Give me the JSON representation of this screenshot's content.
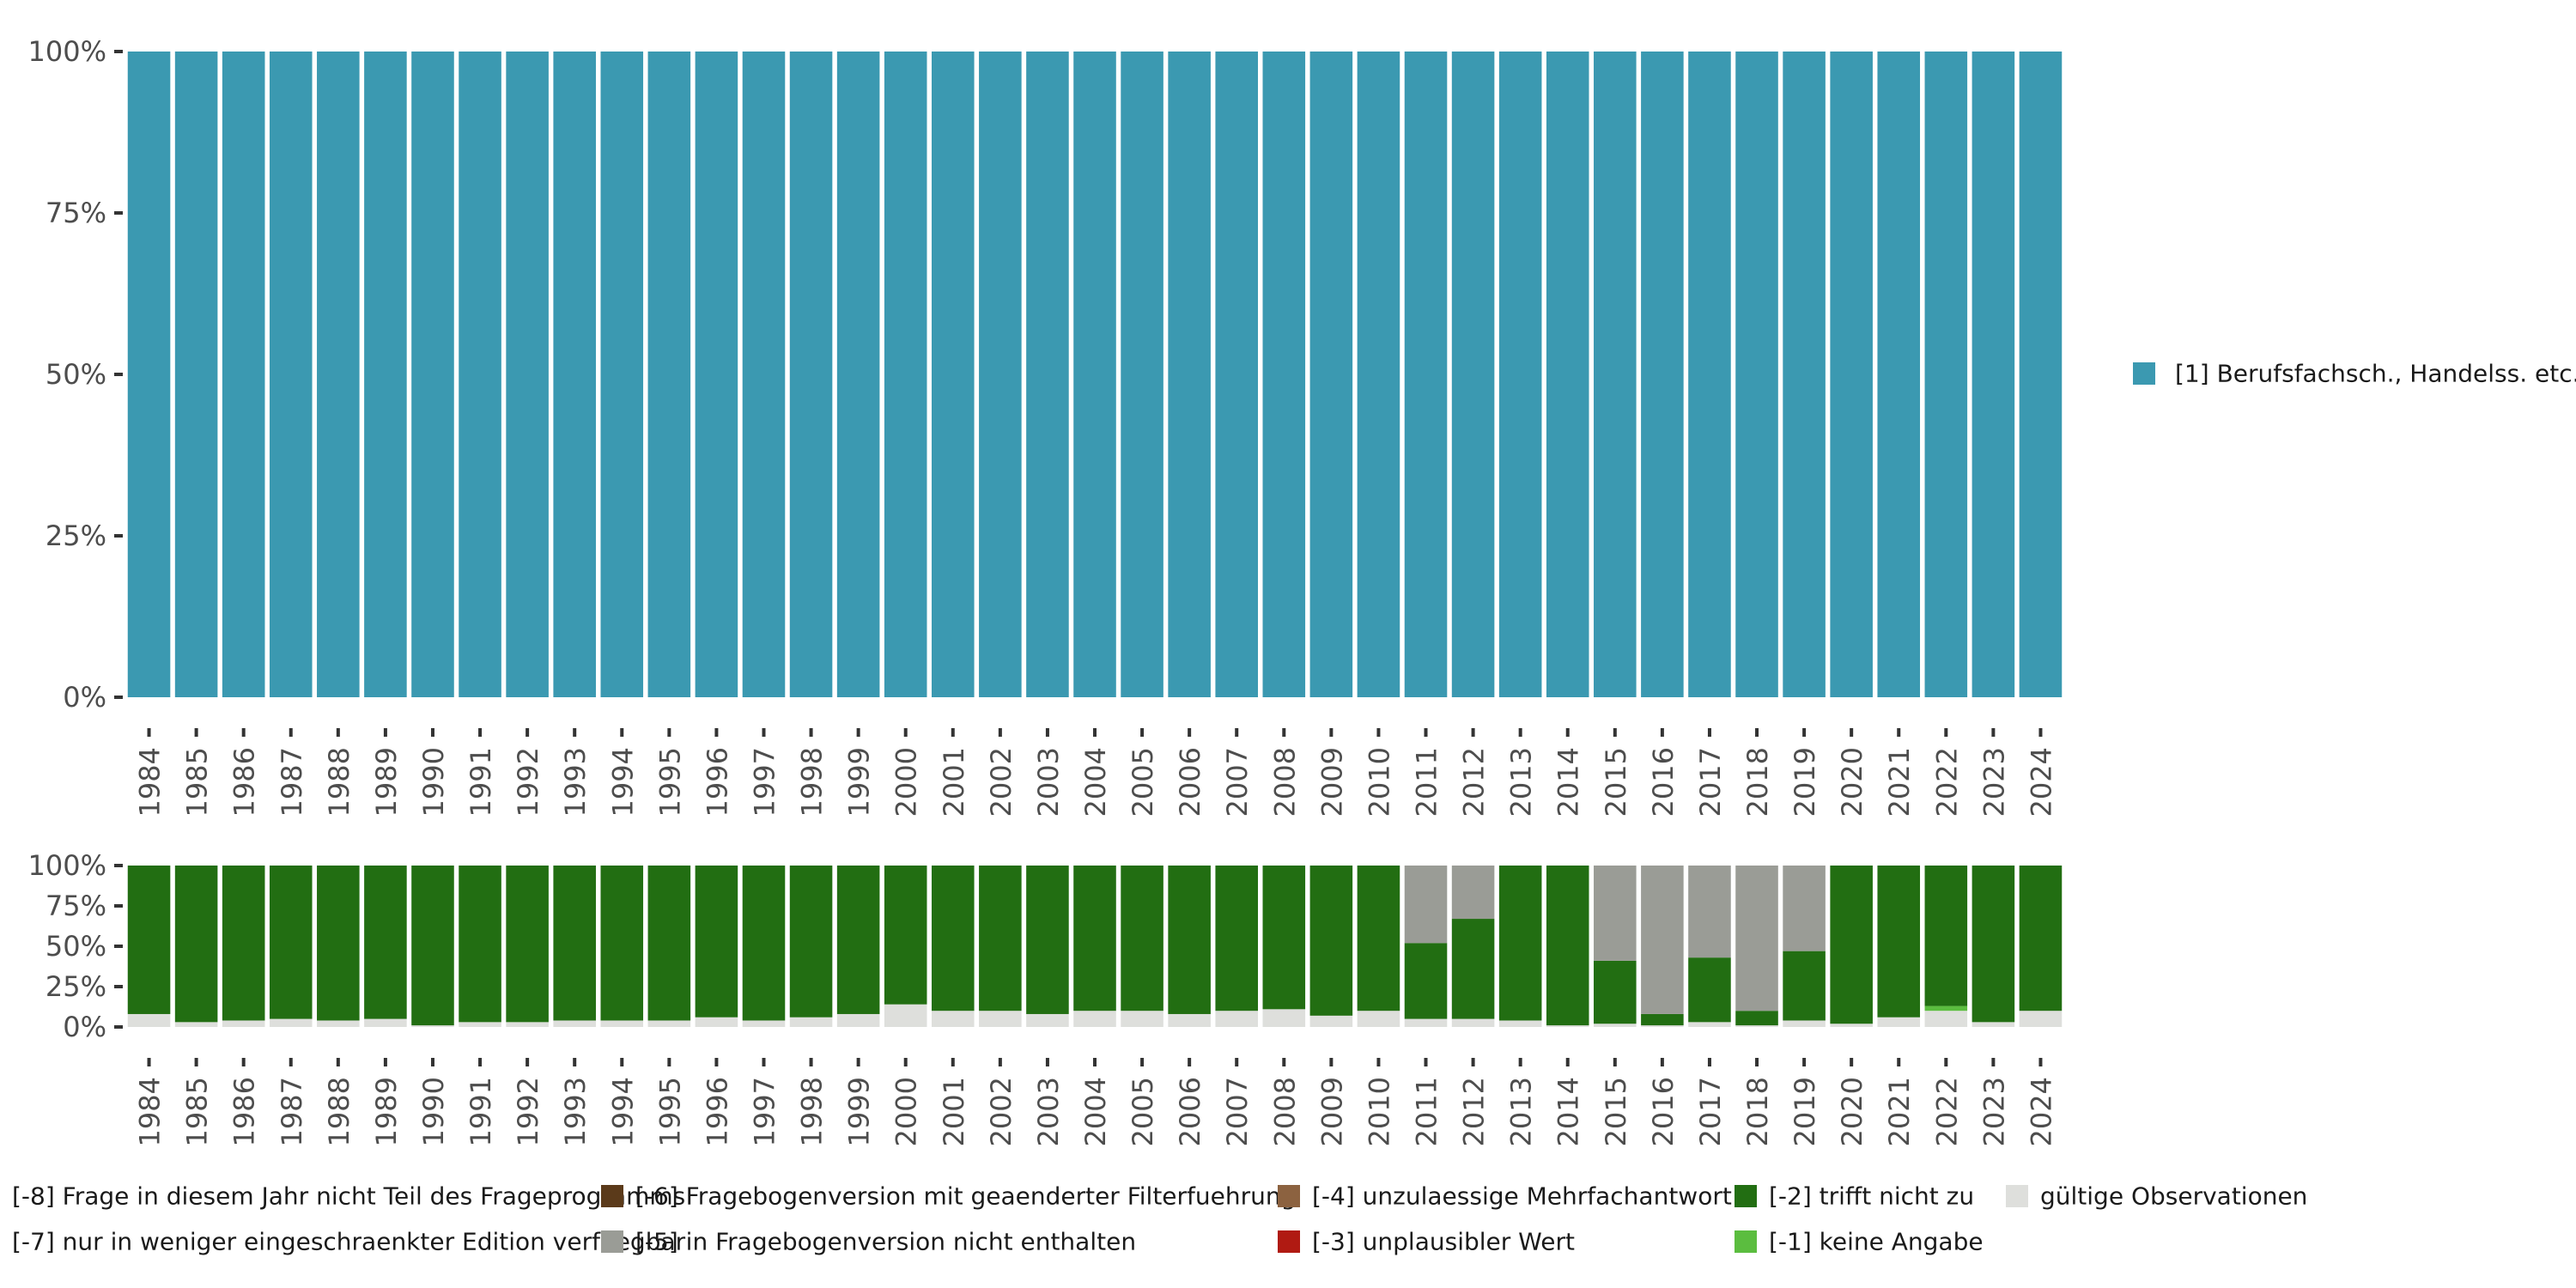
{
  "chart_data": [
    {
      "type": "bar",
      "stacked": true,
      "normalized": true,
      "ylim": [
        0,
        100
      ],
      "yticks": [
        "0%",
        "25%",
        "50%",
        "75%",
        "100%"
      ],
      "grid": false,
      "legend_position": "right",
      "categories": [
        "1984",
        "1985",
        "1986",
        "1987",
        "1988",
        "1989",
        "1990",
        "1991",
        "1992",
        "1993",
        "1994",
        "1995",
        "1996",
        "1997",
        "1998",
        "1999",
        "2000",
        "2001",
        "2002",
        "2003",
        "2004",
        "2005",
        "2006",
        "2007",
        "2008",
        "2009",
        "2010",
        "2011",
        "2012",
        "2013",
        "2014",
        "2015",
        "2016",
        "2017",
        "2018",
        "2019",
        "2020",
        "2021",
        "2022",
        "2023",
        "2024"
      ],
      "series": [
        {
          "name": "[1] Berufsfachsch., Handelss. etc.",
          "color": "#3b99b1",
          "values": [
            100,
            100,
            100,
            100,
            100,
            100,
            100,
            100,
            100,
            100,
            100,
            100,
            100,
            100,
            100,
            100,
            100,
            100,
            100,
            100,
            100,
            100,
            100,
            100,
            100,
            100,
            100,
            100,
            100,
            100,
            100,
            100,
            100,
            100,
            100,
            100,
            100,
            100,
            100,
            100,
            100
          ]
        }
      ]
    },
    {
      "type": "bar",
      "stacked": true,
      "normalized": true,
      "ylim": [
        0,
        100
      ],
      "yticks": [
        "0%",
        "25%",
        "50%",
        "75%",
        "100%"
      ],
      "grid": false,
      "legend_position": "bottom",
      "categories": [
        "1984",
        "1985",
        "1986",
        "1987",
        "1988",
        "1989",
        "1990",
        "1991",
        "1992",
        "1993",
        "1994",
        "1995",
        "1996",
        "1997",
        "1998",
        "1999",
        "2000",
        "2001",
        "2002",
        "2003",
        "2004",
        "2005",
        "2006",
        "2007",
        "2008",
        "2009",
        "2010",
        "2011",
        "2012",
        "2013",
        "2014",
        "2015",
        "2016",
        "2017",
        "2018",
        "2019",
        "2020",
        "2021",
        "2022",
        "2023",
        "2024"
      ],
      "series": [
        {
          "name": "gültige Observationen",
          "color": "#dedfdc",
          "values": [
            8,
            3,
            4,
            5,
            4,
            5,
            1,
            3,
            3,
            4,
            4,
            4,
            6,
            4,
            6,
            8,
            14,
            10,
            10,
            8,
            10,
            10,
            8,
            10,
            11,
            7,
            10,
            5,
            5,
            4,
            1,
            2,
            1,
            3,
            1,
            4,
            2,
            6,
            10,
            3,
            10
          ]
        },
        {
          "name": "[-1] keine Angabe",
          "color": "#5bbd3f",
          "values": [
            0,
            0,
            0,
            0,
            0,
            0,
            0,
            0,
            0,
            0,
            0,
            0,
            0,
            0,
            0,
            0,
            0,
            0,
            0,
            0,
            0,
            0,
            0,
            0,
            0,
            0,
            0,
            0,
            0,
            0,
            0,
            0,
            0,
            0,
            0,
            0,
            0,
            0,
            3,
            0,
            0
          ]
        },
        {
          "name": "[-2] trifft nicht zu",
          "color": "#226e12",
          "values": [
            92,
            97,
            96,
            95,
            96,
            95,
            99,
            97,
            97,
            96,
            96,
            96,
            94,
            96,
            94,
            92,
            86,
            90,
            90,
            92,
            90,
            90,
            92,
            90,
            89,
            93,
            90,
            47,
            62,
            96,
            99,
            39,
            7,
            40,
            9,
            43,
            98,
            94,
            87,
            97,
            90
          ]
        },
        {
          "name": "[-3] unplausibler Wert",
          "color": "#b01a12",
          "values": [
            0,
            0,
            0,
            0,
            0,
            0,
            0,
            0,
            0,
            0,
            0,
            0,
            0,
            0,
            0,
            0,
            0,
            0,
            0,
            0,
            0,
            0,
            0,
            0,
            0,
            0,
            0,
            0,
            0,
            0,
            0,
            0,
            0,
            0,
            0,
            0,
            0,
            0,
            0,
            0,
            0
          ]
        },
        {
          "name": "[-4] unzulaessige Mehrfachantwort",
          "color": "#8c6240",
          "values": [
            0,
            0,
            0,
            0,
            0,
            0,
            0,
            0,
            0,
            0,
            0,
            0,
            0,
            0,
            0,
            0,
            0,
            0,
            0,
            0,
            0,
            0,
            0,
            0,
            0,
            0,
            0,
            0,
            0,
            0,
            0,
            0,
            0,
            0,
            0,
            0,
            0,
            0,
            0,
            0,
            0
          ]
        },
        {
          "name": "[-5] in Fragebogenversion nicht enthalten",
          "color": "#9a9c96",
          "values": [
            0,
            0,
            0,
            0,
            0,
            0,
            0,
            0,
            0,
            0,
            0,
            0,
            0,
            0,
            0,
            0,
            0,
            0,
            0,
            0,
            0,
            0,
            0,
            0,
            0,
            0,
            0,
            48,
            33,
            0,
            0,
            59,
            92,
            57,
            90,
            53,
            0,
            0,
            0,
            0,
            0
          ]
        },
        {
          "name": "[-6] Fragebogenversion mit geaenderter Filterfuehrung",
          "color": "#5b3a1a",
          "values": [
            0,
            0,
            0,
            0,
            0,
            0,
            0,
            0,
            0,
            0,
            0,
            0,
            0,
            0,
            0,
            0,
            0,
            0,
            0,
            0,
            0,
            0,
            0,
            0,
            0,
            0,
            0,
            0,
            0,
            0,
            0,
            0,
            0,
            0,
            0,
            0,
            0,
            0,
            0,
            0,
            0
          ]
        },
        {
          "name": "[-8] Frage in diesem Jahr nicht Teil des Frageprogramms",
          "color": "#3b3b3b",
          "values": [
            0,
            0,
            0,
            0,
            0,
            0,
            0,
            0,
            0,
            0,
            0,
            0,
            0,
            0,
            0,
            0,
            0,
            0,
            0,
            0,
            0,
            0,
            0,
            0,
            0,
            0,
            0,
            0,
            0,
            0,
            0,
            0,
            0,
            0,
            0,
            0,
            0,
            0,
            0,
            0,
            0
          ]
        },
        {
          "name": "[-7] nur in weniger eingeschraenkter Edition verfuegbar",
          "color": "#6a6a6a",
          "values": [
            0,
            0,
            0,
            0,
            0,
            0,
            0,
            0,
            0,
            0,
            0,
            0,
            0,
            0,
            0,
            0,
            0,
            0,
            0,
            0,
            0,
            0,
            0,
            0,
            0,
            0,
            0,
            0,
            0,
            0,
            0,
            0,
            0,
            0,
            0,
            0,
            0,
            0,
            0,
            0,
            0
          ]
        }
      ]
    }
  ],
  "legend_bottom": [
    {
      "label": "[-8] Frage in diesem Jahr nicht Teil des Frageprogramms",
      "color": "#3b3b3b"
    },
    {
      "label": "[-7] nur in weniger eingeschraenkter Edition verfuegbar",
      "color": "#6a6a6a"
    },
    {
      "label": "[-6] Fragebogenversion mit geaenderter Filterfuehrung",
      "color": "#5b3a1a"
    },
    {
      "label": "[-5] in Fragebogenversion nicht enthalten",
      "color": "#9a9c96"
    },
    {
      "label": "[-4] unzulaessige Mehrfachantwort",
      "color": "#8c6240"
    },
    {
      "label": "[-3] unplausibler Wert",
      "color": "#b01a12"
    },
    {
      "label": "[-2] trifft nicht zu",
      "color": "#226e12"
    },
    {
      "label": "[-1] keine Angabe",
      "color": "#5bbd3f"
    },
    {
      "label": "gültige Observationen",
      "color": "#dedfdc"
    }
  ]
}
